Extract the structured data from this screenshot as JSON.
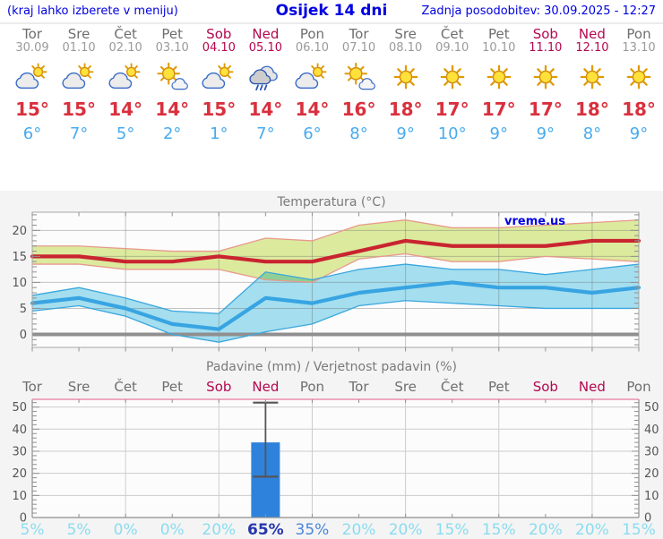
{
  "header": {
    "left_note": "(kraj lahko izberete v meniju)",
    "title": "Osijek 14 dni",
    "last_update": "Zadnja posodobitev: 30.09.2025 - 12:27"
  },
  "days": [
    {
      "name": "Tor",
      "date": "30.09",
      "weekend": false,
      "icon": "sun-behind-cloud",
      "tmax": "15°",
      "tmin": "6°",
      "precip_prob": "5%",
      "prob_level": "light"
    },
    {
      "name": "Sre",
      "date": "01.10",
      "weekend": false,
      "icon": "sun-behind-cloud",
      "tmax": "15°",
      "tmin": "7°",
      "precip_prob": "5%",
      "prob_level": "light"
    },
    {
      "name": "Čet",
      "date": "02.10",
      "weekend": false,
      "icon": "sun-behind-cloud",
      "tmax": "14°",
      "tmin": "5°",
      "precip_prob": "0%",
      "prob_level": "light"
    },
    {
      "name": "Pet",
      "date": "03.10",
      "weekend": false,
      "icon": "sun-small-cloud",
      "tmax": "14°",
      "tmin": "2°",
      "precip_prob": "0%",
      "prob_level": "light"
    },
    {
      "name": "Sob",
      "date": "04.10",
      "weekend": true,
      "icon": "sun-behind-cloud",
      "tmax": "15°",
      "tmin": "1°",
      "precip_prob": "20%",
      "prob_level": "light"
    },
    {
      "name": "Ned",
      "date": "05.10",
      "weekend": true,
      "icon": "rain-cloud",
      "tmax": "14°",
      "tmin": "7°",
      "precip_prob": "65%",
      "prob_level": "dark"
    },
    {
      "name": "Pon",
      "date": "06.10",
      "weekend": false,
      "icon": "sun-behind-cloud",
      "tmax": "14°",
      "tmin": "6°",
      "precip_prob": "35%",
      "prob_level": "medium"
    },
    {
      "name": "Tor",
      "date": "07.10",
      "weekend": false,
      "icon": "sun-small-cloud",
      "tmax": "16°",
      "tmin": "8°",
      "precip_prob": "20%",
      "prob_level": "light"
    },
    {
      "name": "Sre",
      "date": "08.10",
      "weekend": false,
      "icon": "sun",
      "tmax": "18°",
      "tmin": "9°",
      "precip_prob": "20%",
      "prob_level": "light"
    },
    {
      "name": "Čet",
      "date": "09.10",
      "weekend": false,
      "icon": "sun",
      "tmax": "17°",
      "tmin": "10°",
      "precip_prob": "15%",
      "prob_level": "light"
    },
    {
      "name": "Pet",
      "date": "10.10",
      "weekend": false,
      "icon": "sun",
      "tmax": "17°",
      "tmin": "9°",
      "precip_prob": "15%",
      "prob_level": "light"
    },
    {
      "name": "Sob",
      "date": "11.10",
      "weekend": true,
      "icon": "sun",
      "tmax": "17°",
      "tmin": "9°",
      "precip_prob": "20%",
      "prob_level": "light"
    },
    {
      "name": "Ned",
      "date": "12.10",
      "weekend": true,
      "icon": "sun",
      "tmax": "18°",
      "tmin": "8°",
      "precip_prob": "20%",
      "prob_level": "light"
    },
    {
      "name": "Pon",
      "date": "13.10",
      "weekend": false,
      "icon": "sun",
      "tmax": "18°",
      "tmin": "9°",
      "precip_prob": "15%",
      "prob_level": "light"
    }
  ],
  "chart_data": [
    {
      "type": "line",
      "title": "Temperatura (°C)",
      "watermark": "vreme.us",
      "x_labels": [
        "Tor",
        "Sre",
        "Čet",
        "Pet",
        "Sob",
        "Ned",
        "Pon",
        "Tor",
        "Sre",
        "Čet",
        "Pet",
        "Sob",
        "Ned",
        "Pon"
      ],
      "ylim": [
        -2.5,
        23.5
      ],
      "yticks": [
        0,
        5,
        10,
        15,
        20
      ],
      "grid_day_indices": [
        2,
        4,
        6,
        8,
        10,
        12
      ],
      "zero_line_value": 0,
      "series": [
        {
          "name": "max-temp",
          "color": "#c9242f",
          "values": [
            15,
            15,
            14,
            14,
            15,
            14,
            14,
            16,
            18,
            17,
            17,
            17,
            18,
            18
          ]
        },
        {
          "name": "min-temp",
          "color": "#38a4e2",
          "values": [
            6,
            7,
            5,
            2,
            1,
            7,
            6,
            8,
            9,
            10,
            9,
            9,
            8,
            9
          ]
        }
      ],
      "bands": [
        {
          "name": "max-temp-range",
          "fill": "#dcea9e",
          "edge": "#e8998c",
          "upper": [
            17,
            17,
            16.5,
            16,
            16,
            18.5,
            18,
            21,
            22,
            20.5,
            20.5,
            21,
            21.5,
            22
          ],
          "lower": [
            13.5,
            13.5,
            12.5,
            12.5,
            12.5,
            10.5,
            10,
            14.5,
            15.5,
            14,
            14,
            15,
            14.5,
            14
          ]
        },
        {
          "name": "min-temp-range",
          "fill": "#a6e1f2",
          "edge": "#3aa6dd",
          "blend": "multiply",
          "upper": [
            7.5,
            9,
            7,
            4.5,
            4,
            12,
            10.5,
            12.5,
            13.5,
            12.5,
            12.5,
            11.5,
            12.5,
            13.5
          ],
          "lower": [
            4.5,
            5.5,
            3.5,
            0,
            -1.5,
            0.5,
            2,
            5.5,
            6.5,
            6,
            5.5,
            5,
            5,
            5
          ]
        }
      ]
    },
    {
      "type": "bar",
      "title": "Padavine (mm) / Verjetnost padavin (%)",
      "x_labels": [
        "Tor",
        "Sre",
        "Čet",
        "Pet",
        "Sob",
        "Ned",
        "Pon",
        "Tor",
        "Sre",
        "Čet",
        "Pet",
        "Sob",
        "Ned",
        "Pon"
      ],
      "ylim": [
        0,
        53.5
      ],
      "yticks": [
        0,
        10,
        20,
        30,
        40,
        50
      ],
      "grid_day_indices": [
        2,
        4,
        6,
        8,
        10,
        12
      ],
      "bar_color": "#2e82dc",
      "values_mm": [
        0,
        0,
        0,
        0,
        0,
        34,
        0,
        0,
        0,
        0,
        0,
        0,
        0,
        0
      ],
      "error_bars": [
        {
          "day_index": 5,
          "low": 18.5,
          "high": 52
        }
      ],
      "probabilities_pct": [
        5,
        5,
        0,
        0,
        20,
        65,
        35,
        20,
        20,
        15,
        15,
        20,
        20,
        15
      ]
    }
  ],
  "colors": {
    "header_blue": "#0000e0",
    "weekend_red": "#b4074f",
    "max_temp_red": "#d9303e",
    "min_temp_blue": "#47abee",
    "precip_top_border": "#f0a9c0"
  }
}
